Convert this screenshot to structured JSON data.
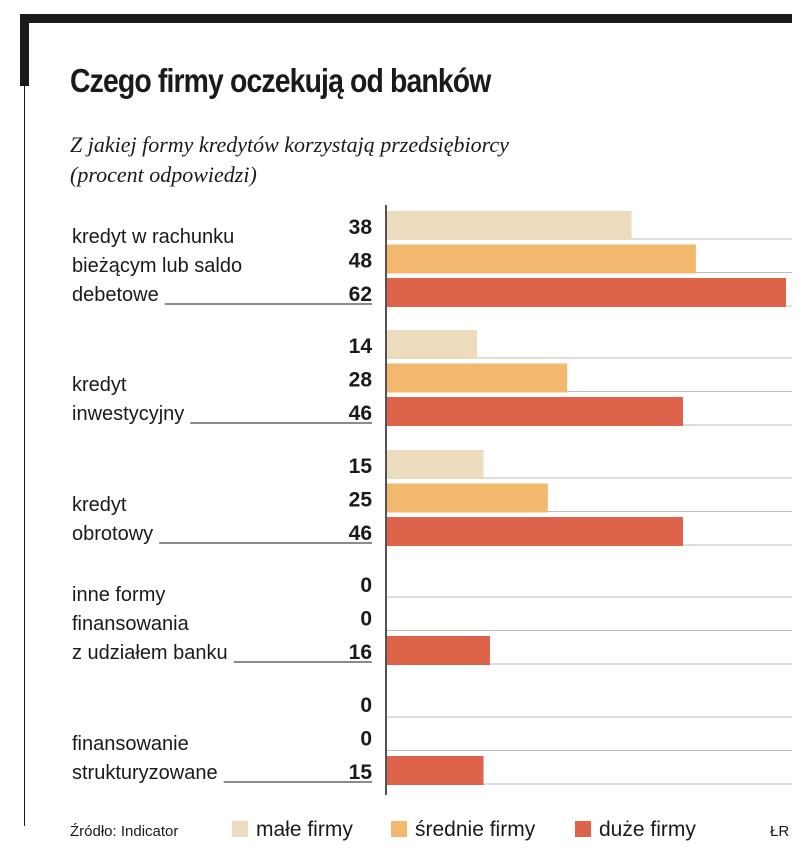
{
  "header": {
    "title": "Czego firmy oczekują od banków",
    "subtitle_line1": "Z jakiej formy kredytów korzystają przedsiębiorcy",
    "subtitle_line2": "(procent odpowiedzi)"
  },
  "footer": {
    "source": "Źródło: Indicator",
    "credit": "ŁR"
  },
  "chart_data": {
    "type": "bar",
    "orientation": "horizontal",
    "title": "Czego firmy oczekują od banków",
    "subtitle": "Z jakiej formy kredytów korzystają przedsiębiorcy (procent odpowiedzi)",
    "categories": [
      [
        "kredyt w rachunku",
        "bieżącym lub saldo",
        "debetowe"
      ],
      [
        "kredyt",
        "inwestycyjny"
      ],
      [
        "kredyt",
        "obrotowy"
      ],
      [
        "inne formy",
        "finansowania",
        "z udziałem banku"
      ],
      [
        "finansowanie",
        "strukturyzowane"
      ]
    ],
    "series": [
      {
        "name": "małe firmy",
        "color": "#ecdcbd",
        "values": [
          38,
          14,
          15,
          0,
          0
        ]
      },
      {
        "name": "średnie firmy",
        "color": "#f2b96e",
        "values": [
          48,
          28,
          25,
          0,
          0
        ]
      },
      {
        "name": "duże firmy",
        "color": "#dd634a",
        "values": [
          62,
          46,
          46,
          16,
          15
        ]
      }
    ],
    "xlim": [
      0,
      62
    ],
    "legend": "bottom",
    "data_labels": true
  }
}
